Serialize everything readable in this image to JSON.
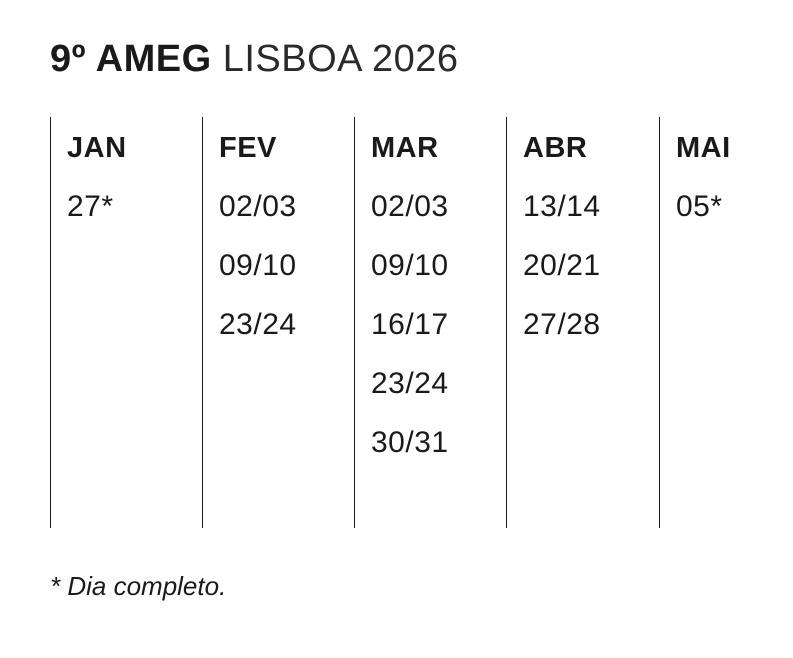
{
  "title": {
    "bold": "9º AMEG",
    "light": "LISBOA 2026"
  },
  "months": [
    {
      "label": "JAN",
      "dates": [
        "27*"
      ]
    },
    {
      "label": "FEV",
      "dates": [
        "02/03",
        "09/10",
        "23/24"
      ]
    },
    {
      "label": "MAR",
      "dates": [
        "02/03",
        "09/10",
        "16/17",
        "23/24",
        "30/31"
      ]
    },
    {
      "label": "ABR",
      "dates": [
        "13/14",
        "20/21",
        "27/28"
      ]
    },
    {
      "label": "MAI",
      "dates": [
        "05*"
      ]
    }
  ],
  "footnote": "* Dia completo."
}
